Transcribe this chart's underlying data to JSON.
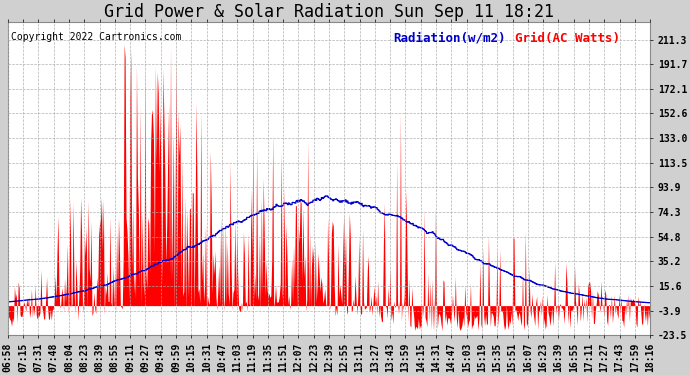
{
  "title": "Grid Power & Solar Radiation Sun Sep 11 18:21",
  "copyright": "Copyright 2022 Cartronics.com",
  "legend_radiation": "Radiation(w/m2)",
  "legend_grid": "Grid(AC Watts)",
  "yticks": [
    211.3,
    191.7,
    172.1,
    152.6,
    133.0,
    113.5,
    93.9,
    74.3,
    54.8,
    35.2,
    15.6,
    -3.9,
    -23.5
  ],
  "xtick_labels": [
    "06:58",
    "07:15",
    "07:31",
    "07:48",
    "08:04",
    "08:23",
    "08:39",
    "08:55",
    "09:11",
    "09:27",
    "09:43",
    "09:59",
    "10:15",
    "10:31",
    "10:47",
    "11:03",
    "11:19",
    "11:35",
    "11:51",
    "12:07",
    "12:23",
    "12:39",
    "12:55",
    "13:11",
    "13:27",
    "13:43",
    "13:59",
    "14:15",
    "14:31",
    "14:47",
    "15:03",
    "15:19",
    "15:35",
    "15:51",
    "16:07",
    "16:23",
    "16:39",
    "16:55",
    "17:11",
    "17:27",
    "17:43",
    "17:59",
    "18:16"
  ],
  "ylim": [
    -23.5,
    225.0
  ],
  "fig_bg_color": "#d0d0d0",
  "plot_bg": "#ffffff",
  "radiation_color": "#0000cc",
  "grid_fill_color": "#ff0000",
  "title_fontsize": 12,
  "copyright_fontsize": 7,
  "tick_fontsize": 7,
  "legend_fontsize": 9
}
